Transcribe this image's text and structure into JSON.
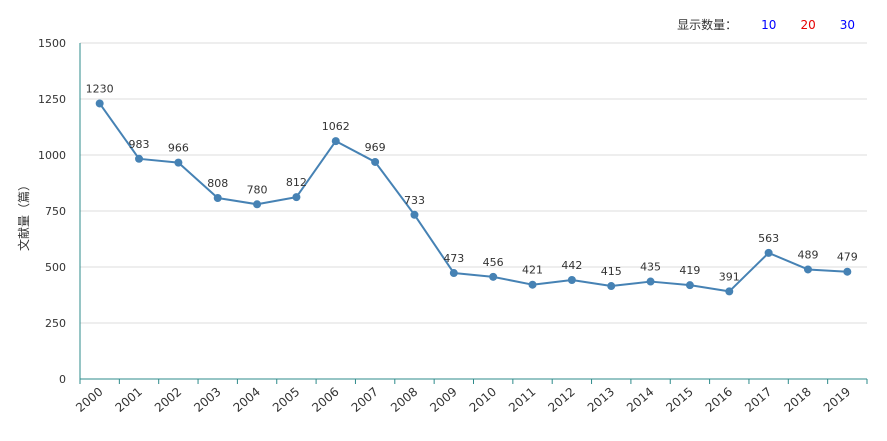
{
  "count_control": {
    "label": "显示数量：",
    "options": [
      {
        "label": "10",
        "color": "#0000ff"
      },
      {
        "label": "20",
        "color": "#e60000"
      },
      {
        "label": "30",
        "color": "#0000ff"
      }
    ]
  },
  "chart_data": {
    "type": "line",
    "title": "",
    "xlabel": "",
    "ylabel": "文献量（篇）",
    "categories": [
      "2000",
      "2001",
      "2002",
      "2003",
      "2004",
      "2005",
      "2006",
      "2007",
      "2008",
      "2009",
      "2010",
      "2011",
      "2012",
      "2013",
      "2014",
      "2015",
      "2016",
      "2017",
      "2018",
      "2019"
    ],
    "series": [
      {
        "values": [
          1230,
          983,
          966,
          808,
          780,
          812,
          1062,
          969,
          733,
          473,
          456,
          421,
          442,
          415,
          435,
          419,
          391,
          563,
          489,
          479
        ]
      }
    ],
    "ylim": [
      0,
      1500
    ],
    "yticks": [
      "0",
      "250",
      "500",
      "750",
      "1000",
      "1250",
      "1500"
    ],
    "grid": true,
    "legend": "none",
    "line_color": "#4682b4",
    "axis_color": "#2e8b8b",
    "grid_color": "#dddddd"
  }
}
